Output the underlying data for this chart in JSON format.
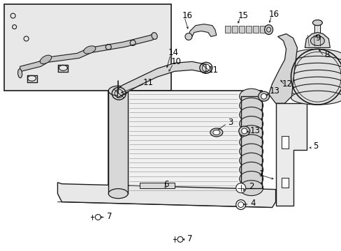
{
  "background_color": "#ffffff",
  "fig_width": 4.89,
  "fig_height": 3.6,
  "dpi": 100,
  "line_color": "#1a1a1a",
  "inset_fill": "#e0e0e0",
  "label_fontsize": 7.0
}
